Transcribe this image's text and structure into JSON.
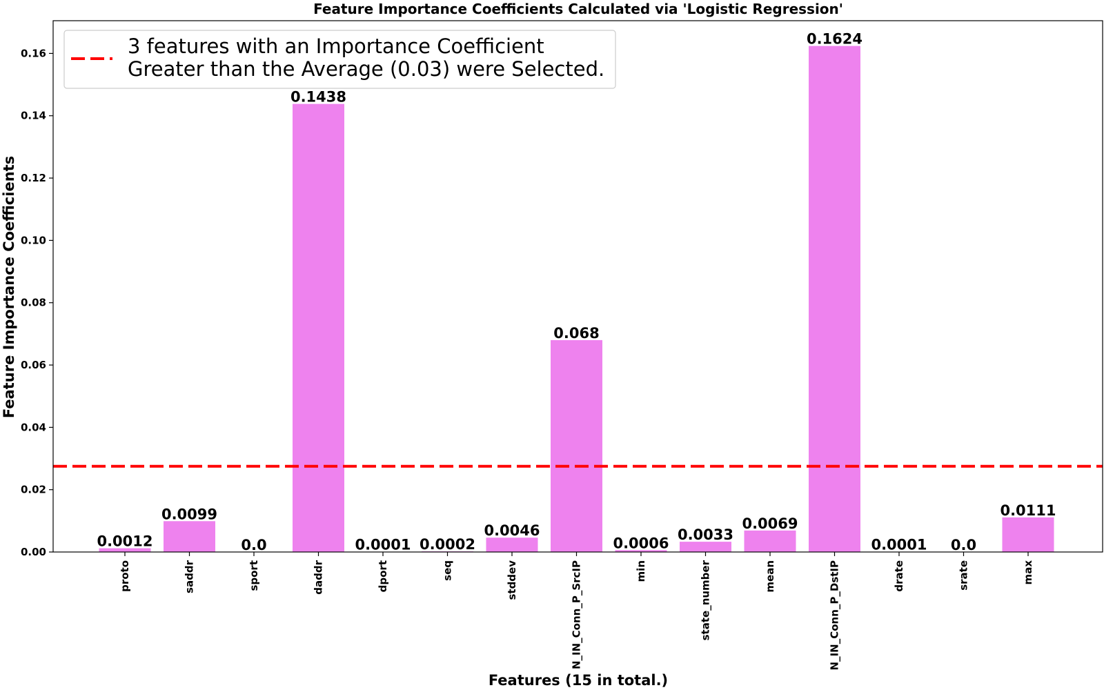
{
  "chart_data": {
    "type": "bar",
    "title": "Feature Importance Coefficients Calculated via 'Logistic Regression'",
    "xlabel": "Features (15 in total.)",
    "ylabel": "Feature Importance Coefficients",
    "categories": [
      "proto",
      "saddr",
      "sport",
      "daddr",
      "dport",
      "seq",
      "stddev",
      "N_IN_Conn_P_SrcIP",
      "min",
      "state_number",
      "mean",
      "N_IN_Conn_P_DstIP",
      "drate",
      "srate",
      "max"
    ],
    "values": [
      0.0012,
      0.0099,
      0.0,
      0.1438,
      0.0001,
      0.0002,
      0.0046,
      0.068,
      0.0006,
      0.0033,
      0.0069,
      0.1624,
      0.0001,
      0.0,
      0.0111
    ],
    "value_labels": [
      "0.0012",
      "0.0099",
      "0.0",
      "0.1438",
      "0.0001",
      "0.0002",
      "0.0046",
      "0.068",
      "0.0006",
      "0.0033",
      "0.0069",
      "0.1624",
      "0.0001",
      "0.0",
      "0.0111"
    ],
    "yticks": [
      0.0,
      0.02,
      0.04,
      0.06,
      0.08,
      0.1,
      0.12,
      0.14,
      0.16
    ],
    "ytick_labels": [
      "0.00",
      "0.02",
      "0.04",
      "0.06",
      "0.08",
      "0.10",
      "0.12",
      "0.14",
      "0.16"
    ],
    "ylim": [
      0,
      0.1705
    ],
    "grid": false,
    "bar_color": "#ee82ee",
    "threshold": {
      "value": 0.0275,
      "color": "#ff0000",
      "style": "dashed",
      "legend_line1": "3 features with an Importance Coefficient",
      "legend_line2": "Greater than the Average (0.03) were Selected."
    },
    "legend_position": "top-left"
  }
}
